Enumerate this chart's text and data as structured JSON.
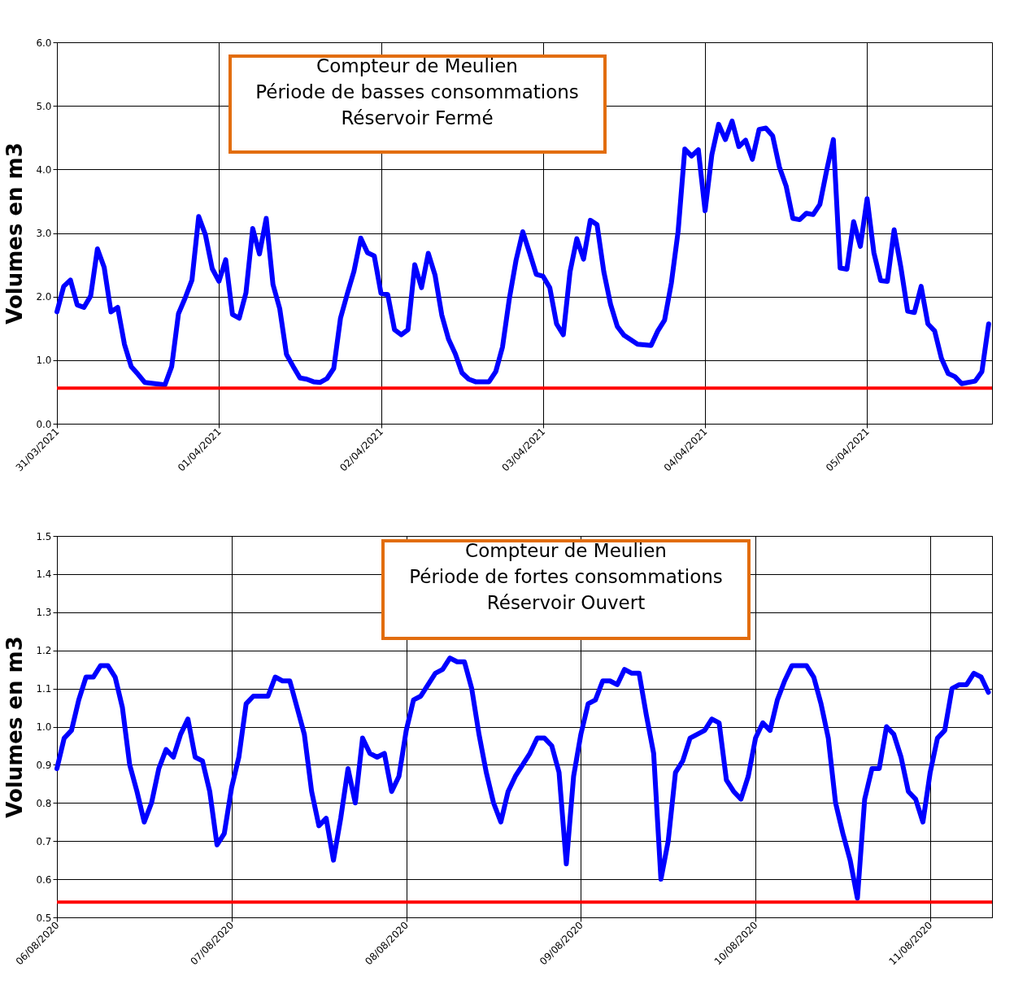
{
  "chart_data": [
    {
      "type": "line",
      "title": "Compteur de Meulien\nPériode de basses consommations\nRéservoir Fermé",
      "ylabel": "Volumes en m3",
      "x": [
        "2021-03-31T00:00",
        "2021-03-31T01:00",
        "2021-03-31T02:00",
        "2021-03-31T03:00",
        "2021-03-31T04:00",
        "2021-03-31T05:00",
        "2021-03-31T06:00",
        "2021-03-31T07:00",
        "2021-03-31T08:00",
        "2021-03-31T09:00",
        "2021-03-31T10:00",
        "2021-03-31T11:00",
        "2021-03-31T12:00",
        "2021-03-31T13:00",
        "2021-03-31T16:00",
        "2021-03-31T17:00",
        "2021-03-31T18:00",
        "2021-03-31T19:00",
        "2021-03-31T20:00",
        "2021-03-31T21:00",
        "2021-03-31T22:00",
        "2021-03-31T23:00",
        "2021-04-01T00:00",
        "2021-04-01T01:00",
        "2021-04-01T02:00",
        "2021-04-01T03:00",
        "2021-04-01T04:00",
        "2021-04-01T05:00",
        "2021-04-01T06:00",
        "2021-04-01T07:00",
        "2021-04-01T08:00",
        "2021-04-01T09:00",
        "2021-04-01T10:00",
        "2021-04-01T11:00",
        "2021-04-01T12:00",
        "2021-04-01T13:00",
        "2021-04-01T14:00",
        "2021-04-01T15:00",
        "2021-04-01T16:00",
        "2021-04-01T17:00",
        "2021-04-01T18:00",
        "2021-04-01T19:00",
        "2021-04-01T20:00",
        "2021-04-01T21:00",
        "2021-04-01T22:00",
        "2021-04-01T23:00",
        "2021-04-02T00:00",
        "2021-04-02T01:00",
        "2021-04-02T02:00",
        "2021-04-02T03:00",
        "2021-04-02T04:00",
        "2021-04-02T05:00",
        "2021-04-02T06:00",
        "2021-04-02T07:00",
        "2021-04-02T08:00",
        "2021-04-02T09:00",
        "2021-04-02T10:00",
        "2021-04-02T11:00",
        "2021-04-02T12:00",
        "2021-04-02T13:00",
        "2021-04-02T14:00",
        "2021-04-02T16:00",
        "2021-04-02T17:00",
        "2021-04-02T18:00",
        "2021-04-02T19:00",
        "2021-04-02T20:00",
        "2021-04-02T21:00",
        "2021-04-02T22:00",
        "2021-04-02T23:00",
        "2021-04-03T00:00",
        "2021-04-03T01:00",
        "2021-04-03T02:00",
        "2021-04-03T03:00",
        "2021-04-03T04:00",
        "2021-04-03T05:00",
        "2021-04-03T06:00",
        "2021-04-03T07:00",
        "2021-04-03T08:00",
        "2021-04-03T09:00",
        "2021-04-03T10:00",
        "2021-04-03T11:00",
        "2021-04-03T12:00",
        "2021-04-03T14:00",
        "2021-04-03T16:00",
        "2021-04-03T17:00",
        "2021-04-03T18:00",
        "2021-04-03T19:00",
        "2021-04-03T20:00",
        "2021-04-03T21:00",
        "2021-04-03T22:00",
        "2021-04-03T23:00",
        "2021-04-04T00:00",
        "2021-04-04T01:00",
        "2021-04-04T02:00",
        "2021-04-04T03:00",
        "2021-04-04T04:00",
        "2021-04-04T05:00",
        "2021-04-04T06:00",
        "2021-04-04T07:00",
        "2021-04-04T08:00",
        "2021-04-04T09:00",
        "2021-04-04T10:00",
        "2021-04-04T11:00",
        "2021-04-04T12:00",
        "2021-04-04T13:00",
        "2021-04-04T14:00",
        "2021-04-04T15:00",
        "2021-04-04T16:00",
        "2021-04-04T17:00",
        "2021-04-04T18:00",
        "2021-04-04T19:00",
        "2021-04-04T20:00",
        "2021-04-04T21:00",
        "2021-04-04T22:00",
        "2021-04-04T23:00",
        "2021-04-05T00:00",
        "2021-04-05T01:00",
        "2021-04-05T02:00",
        "2021-04-05T03:00",
        "2021-04-05T04:00",
        "2021-04-05T05:00",
        "2021-04-05T06:00",
        "2021-04-05T07:00",
        "2021-04-05T08:00",
        "2021-04-05T09:00",
        "2021-04-05T10:00",
        "2021-04-05T11:00",
        "2021-04-05T12:00",
        "2021-04-05T13:00",
        "2021-04-05T14:00",
        "2021-04-05T16:00",
        "2021-04-05T17:00",
        "2021-04-05T18:00"
      ],
      "series": [
        {
          "color": "#0000ff",
          "values": [
            1.76,
            2.16,
            2.26,
            1.87,
            1.83,
            2.01,
            2.75,
            2.46,
            1.76,
            1.83,
            1.25,
            0.9,
            0.78,
            0.65,
            0.61,
            0.9,
            1.73,
            1.98,
            2.26,
            3.26,
            2.97,
            2.44,
            2.24,
            2.58,
            1.72,
            1.66,
            2.06,
            3.07,
            2.67,
            3.23,
            2.19,
            1.81,
            1.09,
            0.9,
            0.72,
            0.7,
            0.66,
            0.65,
            0.71,
            0.87,
            1.66,
            2.04,
            2.4,
            2.92,
            2.69,
            2.64,
            2.05,
            2.03,
            1.48,
            1.4,
            1.48,
            2.5,
            2.14,
            2.68,
            2.34,
            1.71,
            1.33,
            1.1,
            0.8,
            0.7,
            0.66,
            0.66,
            0.82,
            1.21,
            1.96,
            2.57,
            3.02,
            2.69,
            2.35,
            2.32,
            2.14,
            1.57,
            1.4,
            2.39,
            2.91,
            2.59,
            3.2,
            3.13,
            2.39,
            1.88,
            1.53,
            1.39,
            1.25,
            1.23,
            1.46,
            1.63,
            2.21,
            3.02,
            4.32,
            4.21,
            4.31,
            3.35,
            4.23,
            4.71,
            4.47,
            4.76,
            4.36,
            4.46,
            4.16,
            4.63,
            4.65,
            4.53,
            4.04,
            3.74,
            3.23,
            3.21,
            3.31,
            3.29,
            3.45,
            3.98,
            4.47,
            2.45,
            2.43,
            3.18,
            2.79,
            3.54,
            2.69,
            2.25,
            2.24,
            3.05,
            2.46,
            1.77,
            1.75,
            2.16,
            1.57,
            1.46,
            1.03,
            0.79,
            0.74,
            0.63,
            0.67,
            0.82,
            1.57
          ]
        }
      ],
      "xlim": [
        "2021-03-31T00:00",
        "2021-04-05T18:30"
      ],
      "ylim": [
        0,
        6
      ],
      "xticks": [
        {
          "value": "2021-03-31T00:00",
          "label": "31/03/2021"
        },
        {
          "value": "2021-04-01T00:00",
          "label": "01/04/2021"
        },
        {
          "value": "2021-04-02T00:00",
          "label": "02/04/2021"
        },
        {
          "value": "2021-04-03T00:00",
          "label": "03/04/2021"
        },
        {
          "value": "2021-04-04T00:00",
          "label": "04/04/2021"
        },
        {
          "value": "2021-04-05T00:00",
          "label": "05/04/2021"
        }
      ],
      "yticks": [
        {
          "value": 0,
          "label": "0.0"
        },
        {
          "value": 1,
          "label": "1.0"
        },
        {
          "value": 2,
          "label": "2.0"
        },
        {
          "value": 3,
          "label": "3.0"
        },
        {
          "value": 4,
          "label": "4.0"
        },
        {
          "value": 5,
          "label": "5.0"
        },
        {
          "value": 6,
          "label": "6.0"
        }
      ],
      "ref_lines": [
        {
          "axis": "y",
          "value": 0.56,
          "color": "#ff0000"
        }
      ],
      "grid": true
    },
    {
      "type": "line",
      "title": "Compteur de Meulien\nPériode de fortes consommations\nRéservoir Ouvert",
      "ylabel": "Volumes en m3",
      "x": [
        "2020-08-06T00:00",
        "2020-08-06T01:00",
        "2020-08-06T02:00",
        "2020-08-06T03:00",
        "2020-08-06T04:00",
        "2020-08-06T05:00",
        "2020-08-06T06:00",
        "2020-08-06T07:00",
        "2020-08-06T08:00",
        "2020-08-06T09:00",
        "2020-08-06T10:00",
        "2020-08-06T11:00",
        "2020-08-06T12:00",
        "2020-08-06T13:00",
        "2020-08-06T14:00",
        "2020-08-06T15:00",
        "2020-08-06T16:00",
        "2020-08-06T17:00",
        "2020-08-06T18:00",
        "2020-08-06T19:00",
        "2020-08-06T20:00",
        "2020-08-06T21:00",
        "2020-08-06T22:00",
        "2020-08-06T23:00",
        "2020-08-07T00:00",
        "2020-08-07T01:00",
        "2020-08-07T02:00",
        "2020-08-07T03:00",
        "2020-08-07T05:00",
        "2020-08-07T06:00",
        "2020-08-07T07:00",
        "2020-08-07T08:00",
        "2020-08-07T09:00",
        "2020-08-07T10:00",
        "2020-08-07T11:00",
        "2020-08-07T12:00",
        "2020-08-07T13:00",
        "2020-08-07T14:00",
        "2020-08-07T15:00",
        "2020-08-07T16:00",
        "2020-08-07T17:00",
        "2020-08-07T18:00",
        "2020-08-07T19:00",
        "2020-08-07T20:00",
        "2020-08-07T21:00",
        "2020-08-07T22:00",
        "2020-08-07T23:00",
        "2020-08-08T00:00",
        "2020-08-08T01:00",
        "2020-08-08T02:00",
        "2020-08-08T03:00",
        "2020-08-08T04:00",
        "2020-08-08T05:00",
        "2020-08-08T06:00",
        "2020-08-08T07:00",
        "2020-08-08T08:00",
        "2020-08-08T09:00",
        "2020-08-08T10:00",
        "2020-08-08T11:00",
        "2020-08-08T12:00",
        "2020-08-08T13:00",
        "2020-08-08T14:00",
        "2020-08-08T15:00",
        "2020-08-08T16:00",
        "2020-08-08T17:00",
        "2020-08-08T18:00",
        "2020-08-08T19:00",
        "2020-08-08T20:00",
        "2020-08-08T21:00",
        "2020-08-08T22:00",
        "2020-08-08T23:00",
        "2020-08-09T00:00",
        "2020-08-09T01:00",
        "2020-08-09T02:00",
        "2020-08-09T03:00",
        "2020-08-09T04:00",
        "2020-08-09T05:00",
        "2020-08-09T06:00",
        "2020-08-09T07:00",
        "2020-08-09T08:00",
        "2020-08-09T09:00",
        "2020-08-09T10:00",
        "2020-08-09T11:00",
        "2020-08-09T12:00",
        "2020-08-09T13:00",
        "2020-08-09T14:00",
        "2020-08-09T15:00",
        "2020-08-09T16:00",
        "2020-08-09T17:00",
        "2020-08-09T18:00",
        "2020-08-09T19:00",
        "2020-08-09T20:00",
        "2020-08-09T21:00",
        "2020-08-09T22:00",
        "2020-08-09T23:00",
        "2020-08-10T00:00",
        "2020-08-10T01:00",
        "2020-08-10T02:00",
        "2020-08-10T03:00",
        "2020-08-10T04:00",
        "2020-08-10T05:00",
        "2020-08-10T07:00",
        "2020-08-10T08:00",
        "2020-08-10T09:00",
        "2020-08-10T10:00",
        "2020-08-10T11:00",
        "2020-08-10T12:00",
        "2020-08-10T13:00",
        "2020-08-10T14:00",
        "2020-08-10T15:00",
        "2020-08-10T16:00",
        "2020-08-10T17:00",
        "2020-08-10T18:00",
        "2020-08-10T19:00",
        "2020-08-10T20:00",
        "2020-08-10T21:00",
        "2020-08-10T22:00",
        "2020-08-10T23:00",
        "2020-08-11T00:00",
        "2020-08-11T01:00",
        "2020-08-11T02:00",
        "2020-08-11T03:00",
        "2020-08-11T04:00",
        "2020-08-11T05:00",
        "2020-08-11T06:00",
        "2020-08-11T07:00",
        "2020-08-11T08:00"
      ],
      "series": [
        {
          "color": "#0000ff",
          "values": [
            0.89,
            0.97,
            0.99,
            1.07,
            1.13,
            1.13,
            1.16,
            1.16,
            1.13,
            1.05,
            0.9,
            0.83,
            0.75,
            0.8,
            0.89,
            0.94,
            0.92,
            0.98,
            1.02,
            0.92,
            0.91,
            0.83,
            0.69,
            0.72,
            0.84,
            0.92,
            1.06,
            1.08,
            1.08,
            1.13,
            1.12,
            1.12,
            1.05,
            0.98,
            0.83,
            0.74,
            0.76,
            0.65,
            0.76,
            0.89,
            0.8,
            0.97,
            0.93,
            0.92,
            0.93,
            0.83,
            0.87,
            0.99,
            1.07,
            1.08,
            1.11,
            1.14,
            1.15,
            1.18,
            1.17,
            1.17,
            1.1,
            0.98,
            0.88,
            0.8,
            0.75,
            0.83,
            0.87,
            0.9,
            0.93,
            0.97,
            0.97,
            0.95,
            0.88,
            0.64,
            0.87,
            0.98,
            1.06,
            1.07,
            1.12,
            1.12,
            1.11,
            1.15,
            1.14,
            1.14,
            1.03,
            0.93,
            0.6,
            0.7,
            0.88,
            0.91,
            0.97,
            0.98,
            0.99,
            1.02,
            1.01,
            0.86,
            0.83,
            0.81,
            0.87,
            0.97,
            1.01,
            0.99,
            1.07,
            1.12,
            1.16,
            1.16,
            1.13,
            1.06,
            0.97,
            0.8,
            0.72,
            0.65,
            0.55,
            0.81,
            0.89,
            0.89,
            1.0,
            0.98,
            0.92,
            0.83,
            0.81,
            0.75,
            0.88,
            0.97,
            0.99,
            1.1,
            1.11,
            1.11,
            1.14,
            1.13,
            1.09
          ]
        }
      ],
      "xlim": [
        "2020-08-06T00:00",
        "2020-08-11T08:30"
      ],
      "ylim": [
        0.5,
        1.5
      ],
      "xticks": [
        {
          "value": "2020-08-06T00:00",
          "label": "06/08/2020"
        },
        {
          "value": "2020-08-07T00:00",
          "label": "07/08/2020"
        },
        {
          "value": "2020-08-08T00:00",
          "label": "08/08/2020"
        },
        {
          "value": "2020-08-09T00:00",
          "label": "09/08/2020"
        },
        {
          "value": "2020-08-10T00:00",
          "label": "10/08/2020"
        },
        {
          "value": "2020-08-11T00:00",
          "label": "11/08/2020"
        }
      ],
      "yticks": [
        0.5,
        0.6,
        0.7,
        0.8,
        0.9,
        {
          "value": 1,
          "label": "1.0"
        },
        1.1,
        1.2,
        1.3,
        1.4,
        1.5
      ],
      "ref_lines": [
        {
          "axis": "y",
          "value": 0.54,
          "color": "#ff0000"
        }
      ],
      "grid": true
    }
  ]
}
